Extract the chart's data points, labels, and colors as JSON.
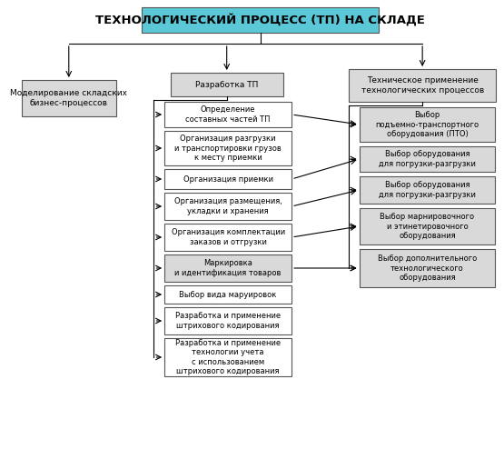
{
  "title": "ТЕХНОЛОГИЧЕСКИЙ ПРОЦЕСС (ТП) НА СКЛАДЕ",
  "title_bg": "#5bc8d8",
  "title_font_size": 9.5,
  "box_bg": "#d9d9d9",
  "box_border": "#555555",
  "white_bg": "#ffffff",
  "fig_bg": "#ffffff",
  "left_box": "Моделирование складских\nбизнес-процессов",
  "center_box": "Разработка ТП",
  "right_box": "Техническое применение\nтехнологических процессов",
  "center_children": [
    "Определение\nсоставных частей ТП",
    "Организация разгрузки\nи транспортировки грузов\nк месту приемки",
    "Организация приемки",
    "Организация размещения,\nукладки и хранения",
    "Организация комплектации\nзаказов и отгрузки",
    "Маркировка\nи идентификация товаров",
    "Выбор вида маруировок",
    "Разработка и применение\nштрихового кодирования",
    "Разработка и применение\nтехнологии учета\nс использованием\nштрихового кодирования"
  ],
  "right_children": [
    "Выбор\nподъемно-транспортного\nоборудования (ПТО)",
    "Выбор оборудования\nдля погрузки-разгрузки",
    "Выбор оборудования\nдля погрузки-разгрузки",
    "Выбор марнировочного\nи этинетировочного\nоборудования",
    "Выбор дополнительного\nтехнологического\nоборудования"
  ],
  "font_size": 6.5,
  "small_font_size": 6.0
}
